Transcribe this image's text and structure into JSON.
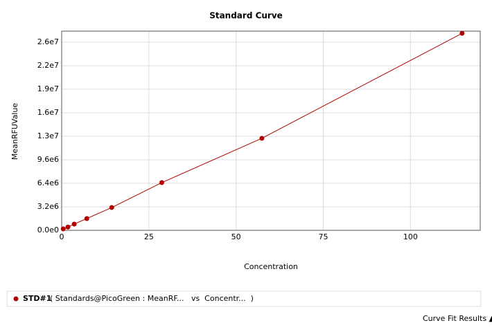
{
  "chart_data": {
    "type": "line",
    "title": "Standard Curve",
    "x_label": "Concentration",
    "y_label": "MeanRFUValue",
    "x": [
      0.45,
      1.8,
      3.6,
      7.2,
      14.35,
      28.7,
      57.4,
      114.8
    ],
    "series": [
      {
        "name": "STD#1",
        "description": "( Standards@PicoGreen : MeanRF...   vs  Concentr...  )",
        "color": "#b00000",
        "values": [
          200000,
          450000,
          850000,
          1600000,
          3100000,
          6490000,
          12520000,
          26800000
        ]
      }
    ],
    "xlim": [
      0,
      120
    ],
    "xticks": [
      0,
      25,
      50,
      75,
      100
    ],
    "ylim": [
      0,
      27100000
    ],
    "yticks": [
      {
        "value": 0,
        "label": "0.0e0"
      },
      {
        "value": 3200000,
        "label": "3.2e6"
      },
      {
        "value": 6400000,
        "label": "6.4e6"
      },
      {
        "value": 9600000,
        "label": "9.6e6"
      },
      {
        "value": 12800000,
        "label": "1.3e7"
      },
      {
        "value": 16000000,
        "label": "1.6e7"
      },
      {
        "value": 19200000,
        "label": "1.9e7"
      },
      {
        "value": 22400000,
        "label": "2.2e7"
      },
      {
        "value": 25600000,
        "label": "2.6e7"
      }
    ],
    "grid": true
  },
  "footer": {
    "link": "Curve Fit Results ▲"
  }
}
